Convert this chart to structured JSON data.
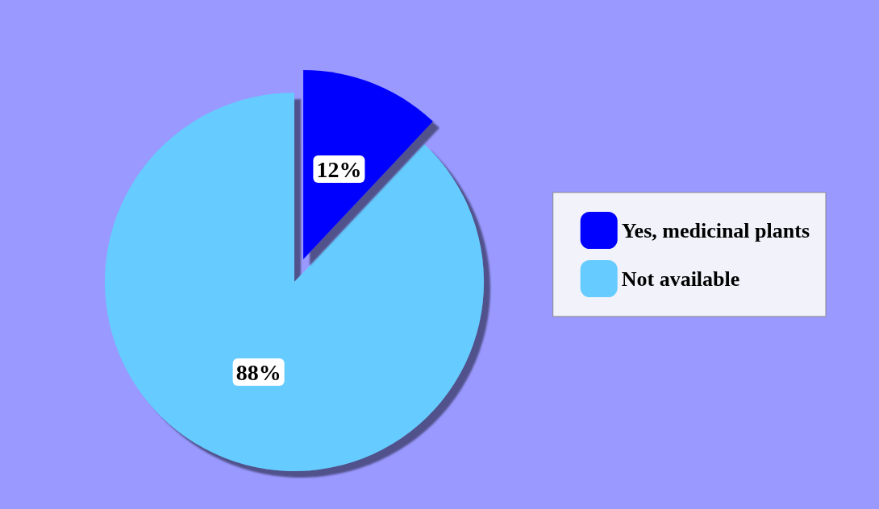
{
  "chart_data": {
    "type": "pie",
    "categories": [
      "Yes, medicinal plants",
      "Not available"
    ],
    "values": [
      12,
      88
    ],
    "colors": [
      "#0000ff",
      "#66ccff"
    ],
    "value_labels": [
      "12%",
      "88%"
    ],
    "legend": "right"
  }
}
